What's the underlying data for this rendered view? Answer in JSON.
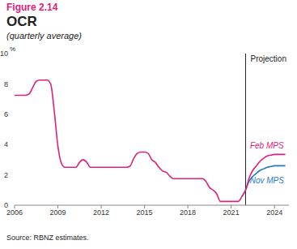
{
  "chart_data": {
    "type": "line",
    "figure": "Figure 2.14",
    "title": "OCR",
    "subtitle": "(quarterly average)",
    "ylabel": "%",
    "source": "Source: RBNZ estimates.",
    "annotations": [
      {
        "text": "Projection",
        "x": 2022
      }
    ],
    "x": [
      2006,
      2006.25,
      2006.5,
      2006.75,
      2007,
      2007.25,
      2007.5,
      2007.75,
      2008,
      2008.25,
      2008.5,
      2008.75,
      2009,
      2009.25,
      2009.5,
      2009.75,
      2010,
      2010.25,
      2010.5,
      2010.75,
      2011,
      2011.25,
      2011.5,
      2011.75,
      2012,
      2012.25,
      2012.5,
      2012.75,
      2013,
      2013.25,
      2013.5,
      2013.75,
      2014,
      2014.25,
      2014.5,
      2014.75,
      2015,
      2015.25,
      2015.5,
      2015.75,
      2016,
      2016.25,
      2016.5,
      2016.75,
      2017,
      2017.25,
      2017.5,
      2017.75,
      2018,
      2018.25,
      2018.5,
      2018.75,
      2019,
      2019.25,
      2019.5,
      2019.75,
      2020,
      2020.25,
      2020.5,
      2020.75,
      2021,
      2021.25,
      2021.5,
      2021.75,
      2022,
      2022.25,
      2022.5,
      2022.75,
      2023,
      2023.25,
      2023.5,
      2023.75,
      2024,
      2024.25,
      2024.5,
      2024.75
    ],
    "series": [
      {
        "name": "Feb MPS",
        "color": "#e0207a",
        "values": [
          7.25,
          7.25,
          7.25,
          7.25,
          7.33,
          7.75,
          8.17,
          8.25,
          8.25,
          8.25,
          8.0,
          6.2,
          3.9,
          2.75,
          2.5,
          2.5,
          2.5,
          2.5,
          2.83,
          3.0,
          2.83,
          2.5,
          2.5,
          2.5,
          2.5,
          2.5,
          2.5,
          2.5,
          2.5,
          2.5,
          2.5,
          2.5,
          2.58,
          3.08,
          3.42,
          3.5,
          3.5,
          3.42,
          3.0,
          2.83,
          2.5,
          2.25,
          2.17,
          1.92,
          1.75,
          1.75,
          1.75,
          1.75,
          1.75,
          1.75,
          1.75,
          1.75,
          1.75,
          1.58,
          1.17,
          1.0,
          0.75,
          0.25,
          0.25,
          0.25,
          0.25,
          0.25,
          0.25,
          0.58,
          1.0,
          1.8,
          2.3,
          2.6,
          2.9,
          3.1,
          3.25,
          3.3,
          3.35,
          3.35,
          3.35,
          3.35
        ]
      },
      {
        "name": "Nov MPS",
        "color": "#1f7ac4",
        "values": [
          null,
          null,
          null,
          null,
          null,
          null,
          null,
          null,
          null,
          null,
          null,
          null,
          null,
          null,
          null,
          null,
          null,
          null,
          null,
          null,
          null,
          null,
          null,
          null,
          null,
          null,
          null,
          null,
          null,
          null,
          null,
          null,
          null,
          null,
          null,
          null,
          null,
          null,
          null,
          null,
          null,
          null,
          null,
          null,
          null,
          null,
          null,
          null,
          null,
          null,
          null,
          null,
          null,
          null,
          null,
          null,
          null,
          null,
          null,
          null,
          null,
          null,
          null,
          0.58,
          1.0,
          1.6,
          1.9,
          2.1,
          2.3,
          2.4,
          2.5,
          2.55,
          2.6,
          2.6,
          2.6,
          2.6
        ]
      }
    ],
    "xlim": [
      2006,
      2025
    ],
    "xticks": [
      2006,
      2009,
      2012,
      2015,
      2018,
      2021,
      2024
    ],
    "ylim": [
      0,
      10
    ],
    "yticks": [
      0,
      2,
      4,
      6,
      8,
      10
    ],
    "grid": false
  }
}
